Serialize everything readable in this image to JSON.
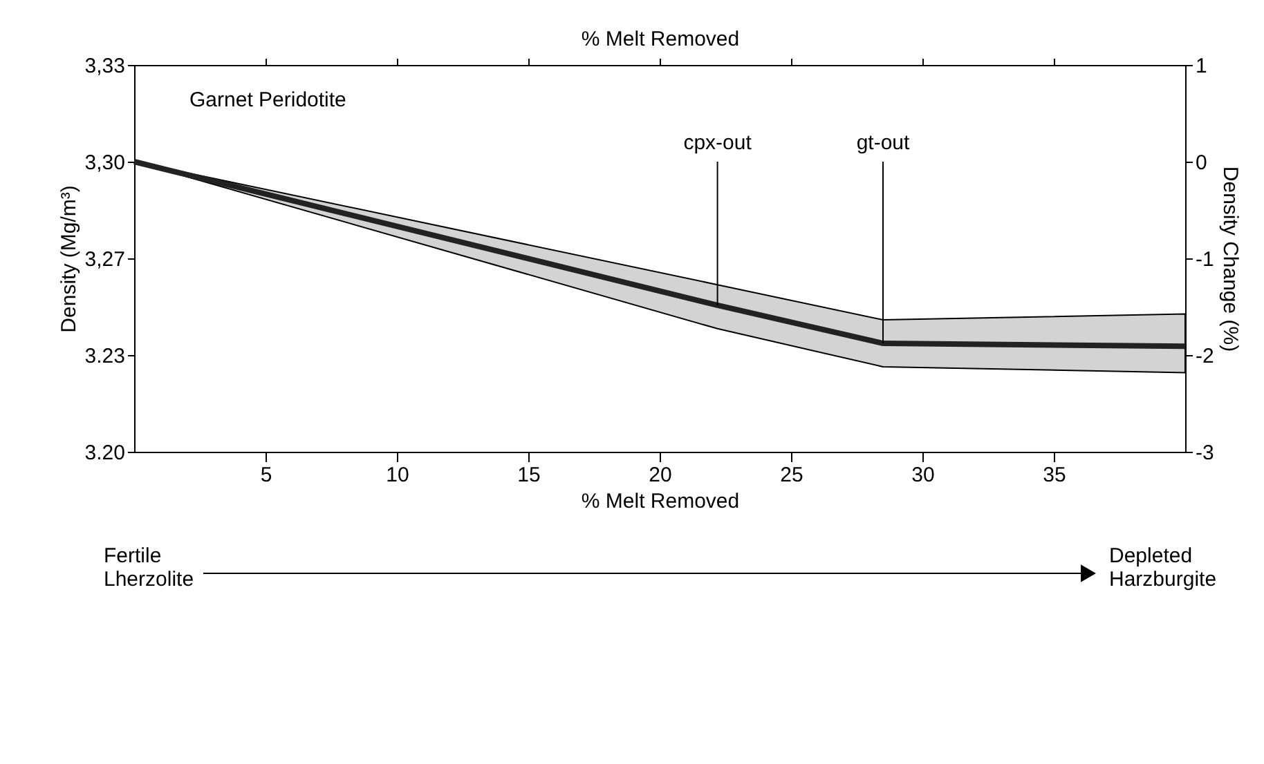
{
  "chart_data": {
    "type": "line",
    "x2label": "% Melt Removed",
    "xlabel": "% Melt Removed",
    "ylabel": "Density (Mg/m³)",
    "y2label": "Density Change (%)",
    "x": [
      0,
      22.2,
      28.5,
      40
    ],
    "series": [
      {
        "color": "#222222",
        "values": [
          3.3,
          3.251,
          3.238,
          3.237
        ],
        "lower": [
          3.3,
          3.243,
          3.23,
          3.228
        ],
        "upper": [
          3.3,
          3.258,
          3.246,
          3.248
        ]
      }
    ],
    "xlim": [
      0,
      40
    ],
    "xticks": [
      5,
      10,
      15,
      20,
      25,
      30,
      35
    ],
    "ylim": [
      3.201,
      3.333
    ],
    "yticks": [
      {
        "value": 3.201,
        "label": "3.20"
      },
      {
        "value": 3.234,
        "label": "3.23"
      },
      {
        "value": 3.267,
        "label": "3,27"
      },
      {
        "value": 3.3,
        "label": "3,30"
      },
      {
        "value": 3.333,
        "label": "3,33"
      }
    ],
    "y2lim": [
      -3,
      1
    ],
    "y2ticks": [
      -3,
      -2,
      -1,
      0,
      1
    ],
    "grid": false,
    "marker": "none",
    "line_style": "solid",
    "annotations": [
      "Garnet Peridotite",
      {
        "text": "cpx-out",
        "x": 22.2,
        "y": 3.251
      },
      {
        "text": "gt-out",
        "x": 28.5,
        "y": 3.238
      },
      "Fertile Lherzolite",
      "Depleted Harzburgite"
    ]
  }
}
